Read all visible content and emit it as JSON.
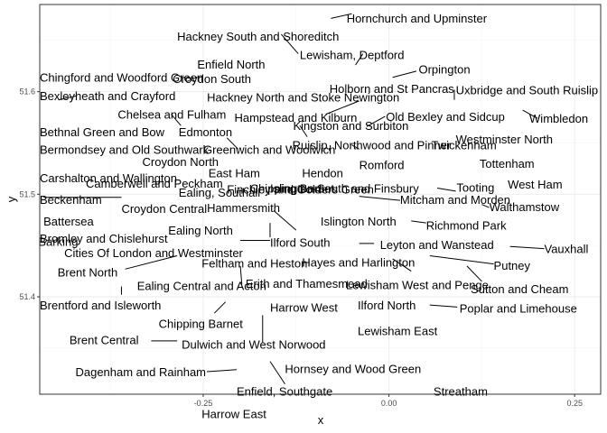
{
  "chart_data": {
    "type": "scatter",
    "xlabel": "x",
    "ylabel": "y",
    "xlim": [
      -0.47,
      0.285
    ],
    "ylim": [
      51.305,
      51.685
    ],
    "x_ticks": [
      -0.25,
      0.0,
      0.25
    ],
    "x_tick_labels": [
      "-0.25",
      "0.00",
      "0.25"
    ],
    "y_ticks": [
      51.4,
      51.5,
      51.6
    ],
    "y_tick_labels": [
      "51.4",
      "51.5",
      "51.6"
    ],
    "grid": true,
    "points": [
      {
        "label": "Hornchurch and Upminster",
        "x": 0.23,
        "y": 51.56,
        "lx": -0.057,
        "ly": 51.672
      },
      {
        "label": "Hackney South and Shoreditch",
        "x": -0.07,
        "y": 51.535,
        "lx": -0.285,
        "ly": 51.654
      },
      {
        "label": "Lewisham, Deptford",
        "x": -0.03,
        "y": 51.47,
        "lx": -0.12,
        "ly": 51.636
      },
      {
        "label": "Enfield North",
        "x": -0.05,
        "y": 51.655,
        "lx": -0.258,
        "ly": 51.627
      },
      {
        "label": "Orpington",
        "x": 0.09,
        "y": 51.37,
        "lx": 0.04,
        "ly": 51.622
      },
      {
        "label": "Chingford and Woodford Green",
        "x": 0.0,
        "y": 51.61,
        "lx": -0.47,
        "ly": 51.614
      },
      {
        "label": "Croydon South",
        "x": -0.09,
        "y": 51.33,
        "lx": -0.291,
        "ly": 51.613
      },
      {
        "label": "Holborn and St Pancras",
        "x": -0.12,
        "y": 51.53,
        "lx": -0.08,
        "ly": 51.603
      },
      {
        "label": "Uxbridge and South Ruislip",
        "x": -0.48,
        "y": 51.55,
        "lx": 0.09,
        "ly": 51.602
      },
      {
        "label": "Bexleyheath and Crayford",
        "x": 0.15,
        "y": 51.46,
        "lx": -0.47,
        "ly": 51.596
      },
      {
        "label": "Hackney North and Stoke Newington",
        "x": -0.07,
        "y": 51.56,
        "lx": -0.245,
        "ly": 51.595
      },
      {
        "label": "Chelsea and Fulham",
        "x": -0.18,
        "y": 51.48,
        "lx": -0.365,
        "ly": 51.578
      },
      {
        "label": "Hampstead and Kilburn",
        "x": -0.18,
        "y": 51.55,
        "lx": -0.208,
        "ly": 51.575
      },
      {
        "label": "Old Bexley and Sidcup",
        "x": 0.12,
        "y": 51.44,
        "lx": -0.004,
        "ly": 51.576
      },
      {
        "label": "Wimbledon",
        "x": -0.2,
        "y": 51.42,
        "lx": 0.189,
        "ly": 51.574
      },
      {
        "label": "Kingston and Surbiton",
        "x": -0.29,
        "y": 51.39,
        "lx": -0.129,
        "ly": 51.567
      },
      {
        "label": "Bethnal Green and Bow",
        "x": -0.04,
        "y": 51.52,
        "lx": -0.47,
        "ly": 51.561
      },
      {
        "label": "Edmonton",
        "x": -0.06,
        "y": 51.62,
        "lx": -0.283,
        "ly": 51.561
      },
      {
        "label": "Westminster North",
        "x": -0.19,
        "y": 51.53,
        "lx": 0.09,
        "ly": 51.554
      },
      {
        "label": "Ruislip, Northwood and Pinner",
        "x": -0.42,
        "y": 51.58,
        "lx": -0.13,
        "ly": 51.548
      },
      {
        "label": "Twickenham",
        "x": -0.34,
        "y": 51.44,
        "lx": 0.057,
        "ly": 51.548
      },
      {
        "label": "Bermondsey and Old Southwark",
        "x": -0.08,
        "y": 51.5,
        "lx": -0.47,
        "ly": 51.544
      },
      {
        "label": "Greenwich and Woolwich",
        "x": 0.03,
        "y": 51.48,
        "lx": -0.25,
        "ly": 51.544
      },
      {
        "label": "Tottenham",
        "x": -0.07,
        "y": 51.59,
        "lx": 0.122,
        "ly": 51.53
      },
      {
        "label": "Croydon North",
        "x": -0.1,
        "y": 51.39,
        "lx": -0.332,
        "ly": 51.532
      },
      {
        "label": "Romford",
        "x": 0.18,
        "y": 51.58,
        "lx": -0.04,
        "ly": 51.529
      },
      {
        "label": "East Ham",
        "x": 0.05,
        "y": 51.53,
        "lx": -0.243,
        "ly": 51.521
      },
      {
        "label": "Hendon",
        "x": -0.22,
        "y": 51.59,
        "lx": -0.117,
        "ly": 51.521
      },
      {
        "label": "Carshalton and Wallington",
        "x": -0.16,
        "y": 51.36,
        "lx": -0.47,
        "ly": 51.516
      },
      {
        "label": "Camberwell and Peckham",
        "x": -0.08,
        "y": 51.47,
        "lx": -0.408,
        "ly": 51.511
      },
      {
        "label": "West Ham",
        "x": 0.02,
        "y": 51.53,
        "lx": 0.16,
        "ly": 51.51
      },
      {
        "label": "Tooting",
        "x": -0.17,
        "y": 51.43,
        "lx": 0.091,
        "ly": 51.507
      },
      {
        "label": "Chipping Barnet",
        "x": -0.2,
        "y": 51.65,
        "lx": -0.187,
        "ly": 51.506
      },
      {
        "label": "Islington South and Finsbury",
        "x": -0.1,
        "y": 51.53,
        "lx": -0.16,
        "ly": 51.506
      },
      {
        "label": "Ealing, Southall",
        "x": -0.37,
        "y": 51.51,
        "lx": -0.283,
        "ly": 51.502
      },
      {
        "label": "Finchley and Golders Green",
        "x": -0.2,
        "y": 51.59,
        "lx": -0.218,
        "ly": 51.505
      },
      {
        "label": "Beckenham",
        "x": -0.03,
        "y": 51.4,
        "lx": -0.47,
        "ly": 51.495
      },
      {
        "label": "Mitcham and Morden",
        "x": -0.17,
        "y": 51.4,
        "lx": 0.015,
        "ly": 51.495
      },
      {
        "label": "Walthamstow",
        "x": -0.02,
        "y": 51.58,
        "lx": 0.135,
        "ly": 51.488
      },
      {
        "label": "Hammersmith",
        "x": -0.22,
        "y": 51.49,
        "lx": -0.245,
        "ly": 51.487
      },
      {
        "label": "Croydon Central",
        "x": -0.08,
        "y": 51.38,
        "lx": -0.36,
        "ly": 51.486
      },
      {
        "label": "Battersea",
        "x": -0.16,
        "y": 51.47,
        "lx": -0.465,
        "ly": 51.474
      },
      {
        "label": "Islington North",
        "x": -0.11,
        "y": 51.56,
        "lx": -0.092,
        "ly": 51.474
      },
      {
        "label": "Richmond Park",
        "x": -0.28,
        "y": 51.44,
        "lx": 0.05,
        "ly": 51.47
      },
      {
        "label": "Ealing North",
        "x": -0.32,
        "y": 51.54,
        "lx": -0.297,
        "ly": 51.465
      },
      {
        "label": "Bromley and Chislehurst",
        "x": 0.05,
        "y": 51.41,
        "lx": -0.47,
        "ly": 51.457
      },
      {
        "label": "Barking",
        "x": 0.1,
        "y": 51.53,
        "lx": -0.472,
        "ly": 51.454
      },
      {
        "label": "Ilford South",
        "x": 0.07,
        "y": 51.56,
        "lx": -0.16,
        "ly": 51.453
      },
      {
        "label": "Leyton and Wanstead",
        "x": 0.0,
        "y": 51.57,
        "lx": -0.012,
        "ly": 51.451
      },
      {
        "label": "Vauxhall",
        "x": -0.12,
        "y": 51.48,
        "lx": 0.209,
        "ly": 51.447
      },
      {
        "label": "Cities Of London and Westminster",
        "x": -0.13,
        "y": 51.51,
        "lx": -0.437,
        "ly": 51.443
      },
      {
        "label": "Feltham and Heston",
        "x": -0.39,
        "y": 51.46,
        "lx": -0.252,
        "ly": 51.433
      },
      {
        "label": "Hayes and Harlington",
        "x": -0.43,
        "y": 51.5,
        "lx": -0.117,
        "ly": 51.434
      },
      {
        "label": "Putney",
        "x": -0.22,
        "y": 51.46,
        "lx": 0.141,
        "ly": 51.431
      },
      {
        "label": "Brent North",
        "x": -0.27,
        "y": 51.57,
        "lx": -0.446,
        "ly": 51.424
      },
      {
        "label": "Erith and Thamesmead",
        "x": 0.15,
        "y": 51.49,
        "lx": -0.193,
        "ly": 51.413
      },
      {
        "label": "Lewisham West and Penge",
        "x": -0.04,
        "y": 51.43,
        "lx": -0.058,
        "ly": 51.412
      },
      {
        "label": "Ealing Central and Acton",
        "x": -0.29,
        "y": 51.51,
        "lx": -0.339,
        "ly": 51.411
      },
      {
        "label": "Sutton and Cheam",
        "x": -0.2,
        "y": 51.36,
        "lx": 0.11,
        "ly": 51.408
      },
      {
        "label": "Brentford and Isleworth",
        "x": -0.32,
        "y": 51.48,
        "lx": -0.47,
        "ly": 51.392
      },
      {
        "label": "Ilford North",
        "x": 0.08,
        "y": 51.58,
        "lx": -0.042,
        "ly": 51.392
      },
      {
        "label": "Harrow West",
        "x": -0.36,
        "y": 51.58,
        "lx": -0.16,
        "ly": 51.39
      },
      {
        "label": "Poplar and Limehouse",
        "x": -0.02,
        "y": 51.51,
        "lx": 0.095,
        "ly": 51.389
      },
      {
        "label": "Chipping Barnet",
        "x": -0.2,
        "y": 51.65,
        "lx": -0.31,
        "ly": 51.374
      },
      {
        "label": "Lewisham East",
        "x": 0.0,
        "y": 51.45,
        "lx": -0.042,
        "ly": 51.367
      },
      {
        "label": "Brent Central",
        "x": -0.24,
        "y": 51.55,
        "lx": -0.43,
        "ly": 51.358
      },
      {
        "label": "Dulwich and West Norwood",
        "x": -0.09,
        "y": 51.44,
        "lx": -0.279,
        "ly": 51.354
      },
      {
        "label": "Hornsey and Wood Green",
        "x": -0.11,
        "y": 51.59,
        "lx": -0.14,
        "ly": 51.33
      },
      {
        "label": "Dagenham and Rainham",
        "x": 0.15,
        "y": 51.54,
        "lx": -0.422,
        "ly": 51.327
      },
      {
        "label": "Enfield, Southgate",
        "x": -0.13,
        "y": 51.63,
        "lx": -0.205,
        "ly": 51.308
      },
      {
        "label": "Streatham",
        "x": -0.13,
        "y": 51.43,
        "lx": 0.06,
        "ly": 51.308
      },
      {
        "label": "Harrow East",
        "x": -0.31,
        "y": 51.6,
        "lx": -0.252,
        "ly": 51.286
      }
    ],
    "segments": [
      {
        "x1": -0.078,
        "y1": 51.6715,
        "x2": -0.05,
        "y2": 51.676
      },
      {
        "x1": -0.145,
        "y1": 51.656,
        "x2": -0.122,
        "y2": 51.637
      },
      {
        "x1": -0.045,
        "y1": 51.626,
        "x2": -0.035,
        "y2": 51.637
      },
      {
        "x1": 0.005,
        "y1": 51.614,
        "x2": 0.037,
        "y2": 51.62
      },
      {
        "x1": -0.04,
        "y1": 51.591,
        "x2": -0.085,
        "y2": 51.578
      },
      {
        "x1": 0.088,
        "y1": 51.592,
        "x2": 0.088,
        "y2": 51.602
      },
      {
        "x1": -0.445,
        "y1": 51.592,
        "x2": -0.42,
        "y2": 51.596
      },
      {
        "x1": -0.28,
        "y1": 51.567,
        "x2": -0.293,
        "y2": 51.578
      },
      {
        "x1": -0.03,
        "y1": 51.566,
        "x2": -0.005,
        "y2": 51.576
      },
      {
        "x1": 0.18,
        "y1": 51.582,
        "x2": 0.2,
        "y2": 51.574
      },
      {
        "x1": -0.12,
        "y1": 51.567,
        "x2": -0.11,
        "y2": 51.556
      },
      {
        "x1": -0.218,
        "y1": 51.555,
        "x2": -0.203,
        "y2": 51.544
      },
      {
        "x1": -0.04,
        "y1": 51.544,
        "x2": -0.05,
        "y2": 51.548
      },
      {
        "x1": 0.065,
        "y1": 51.506,
        "x2": 0.09,
        "y2": 51.503
      },
      {
        "x1": -0.04,
        "y1": 51.498,
        "x2": 0.015,
        "y2": 51.494
      },
      {
        "x1": -0.108,
        "y1": 51.507,
        "x2": -0.095,
        "y2": 51.503
      },
      {
        "x1": 0.125,
        "y1": 51.49,
        "x2": 0.135,
        "y2": 51.487
      },
      {
        "x1": -0.465,
        "y1": 51.497,
        "x2": -0.36,
        "y2": 51.497
      },
      {
        "x1": -0.125,
        "y1": 51.465,
        "x2": -0.155,
        "y2": 51.484
      },
      {
        "x1": 0.03,
        "y1": 51.474,
        "x2": 0.05,
        "y2": 51.472
      },
      {
        "x1": -0.16,
        "y1": 51.458,
        "x2": -0.16,
        "y2": 51.472
      },
      {
        "x1": -0.2,
        "y1": 51.455,
        "x2": -0.16,
        "y2": 51.455
      },
      {
        "x1": -0.04,
        "y1": 51.452,
        "x2": -0.02,
        "y2": 51.452
      },
      {
        "x1": 0.163,
        "y1": 51.449,
        "x2": 0.209,
        "y2": 51.447
      },
      {
        "x1": 0.055,
        "y1": 51.44,
        "x2": 0.141,
        "y2": 51.432
      },
      {
        "x1": 0.005,
        "y1": 51.437,
        "x2": 0.03,
        "y2": 51.425
      },
      {
        "x1": -0.285,
        "y1": 51.44,
        "x2": -0.355,
        "y2": 51.427
      },
      {
        "x1": -0.198,
        "y1": 51.412,
        "x2": -0.2,
        "y2": 51.43
      },
      {
        "x1": 0.105,
        "y1": 51.43,
        "x2": 0.125,
        "y2": 51.415
      },
      {
        "x1": -0.36,
        "y1": 51.41,
        "x2": -0.36,
        "y2": 51.402
      },
      {
        "x1": -0.22,
        "y1": 51.395,
        "x2": -0.235,
        "y2": 51.384
      },
      {
        "x1": 0.055,
        "y1": 51.392,
        "x2": 0.092,
        "y2": 51.39
      },
      {
        "x1": -0.17,
        "y1": 51.382,
        "x2": -0.17,
        "y2": 51.355
      },
      {
        "x1": -0.32,
        "y1": 51.357,
        "x2": -0.285,
        "y2": 51.357
      },
      {
        "x1": -0.16,
        "y1": 51.337,
        "x2": -0.14,
        "y2": 51.315
      },
      {
        "x1": -0.205,
        "y1": 51.329,
        "x2": -0.245,
        "y2": 51.327
      }
    ]
  }
}
